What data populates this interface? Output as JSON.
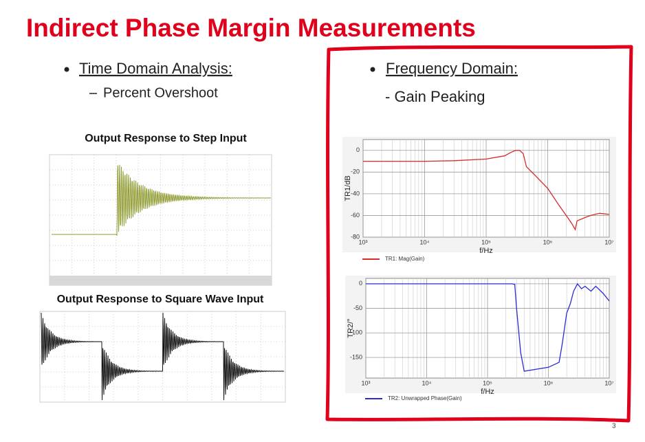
{
  "slide": {
    "title": "Indirect Phase Margin Measurements",
    "page_number": "3"
  },
  "left": {
    "bullet": "Time Domain Analysis:",
    "sub_bullet": "Percent Overshoot",
    "step_caption": "Output Response to Step Input",
    "square_caption": "Output Response to Square Wave Input"
  },
  "right": {
    "bullet": "Frequency Domain:",
    "sub_bullet": "- Gain Peaking"
  },
  "plots": [
    {
      "type": "line",
      "ylabel": "TR1/dB",
      "xlabel": "f/Hz",
      "log_x": true,
      "grid": true,
      "xlim": [
        1000,
        10000000
      ],
      "xticks": [
        {
          "value": 1000,
          "label": "10³"
        },
        {
          "value": 10000,
          "label": "10⁴"
        },
        {
          "value": 100000,
          "label": "10⁵"
        },
        {
          "value": 1000000,
          "label": "10⁶"
        },
        {
          "value": 10000000,
          "label": "10⁷"
        }
      ],
      "ylim": [
        -80,
        10
      ],
      "yticks": [
        0,
        -20,
        -40,
        -60,
        -80
      ],
      "series": [
        {
          "name": "TR1: Mag(Gain)",
          "color": "#d42a2a",
          "x": [
            1000,
            10000,
            30000,
            100000,
            200000,
            250000,
            300000,
            350000,
            400000,
            450000,
            600000,
            1000000,
            1500000,
            2000000,
            2500000,
            2800000,
            3000000,
            4000000,
            5000000,
            7000000,
            10000000
          ],
          "values": [
            -10,
            -10,
            -9.5,
            -8,
            -5,
            -2,
            0,
            0,
            -3,
            -15,
            -22,
            -35,
            -50,
            -60,
            -68,
            -73,
            -65,
            -62,
            -60,
            -58,
            -59
          ]
        }
      ]
    },
    {
      "type": "line",
      "ylabel": "TR2/°",
      "xlabel": "f/Hz",
      "log_x": true,
      "grid": true,
      "xlim": [
        1000,
        10000000
      ],
      "xticks": [
        {
          "value": 1000,
          "label": "10³"
        },
        {
          "value": 10000,
          "label": "10⁴"
        },
        {
          "value": 100000,
          "label": "10⁵"
        },
        {
          "value": 1000000,
          "label": "10⁶"
        },
        {
          "value": 10000000,
          "label": "10⁷"
        }
      ],
      "ylim": [
        -192,
        11
      ],
      "yticks": [
        0,
        -50,
        -100,
        -150
      ],
      "series": [
        {
          "name": "TR2: Unwrapped Phase(Gain)",
          "color": "#2a2ad4",
          "x": [
            1000,
            100000,
            250000,
            280000,
            300000,
            350000,
            400000,
            1000000,
            1500000,
            1700000,
            2000000,
            2300000,
            2600000,
            3000000,
            3500000,
            4000000,
            5000000,
            6000000,
            8000000,
            10000000
          ],
          "values": [
            0,
            0,
            0,
            -1,
            -50,
            -140,
            -178,
            -170,
            -160,
            -120,
            -60,
            -40,
            -15,
            0,
            -10,
            -5,
            -15,
            -5,
            -20,
            -35
          ]
        }
      ]
    }
  ]
}
